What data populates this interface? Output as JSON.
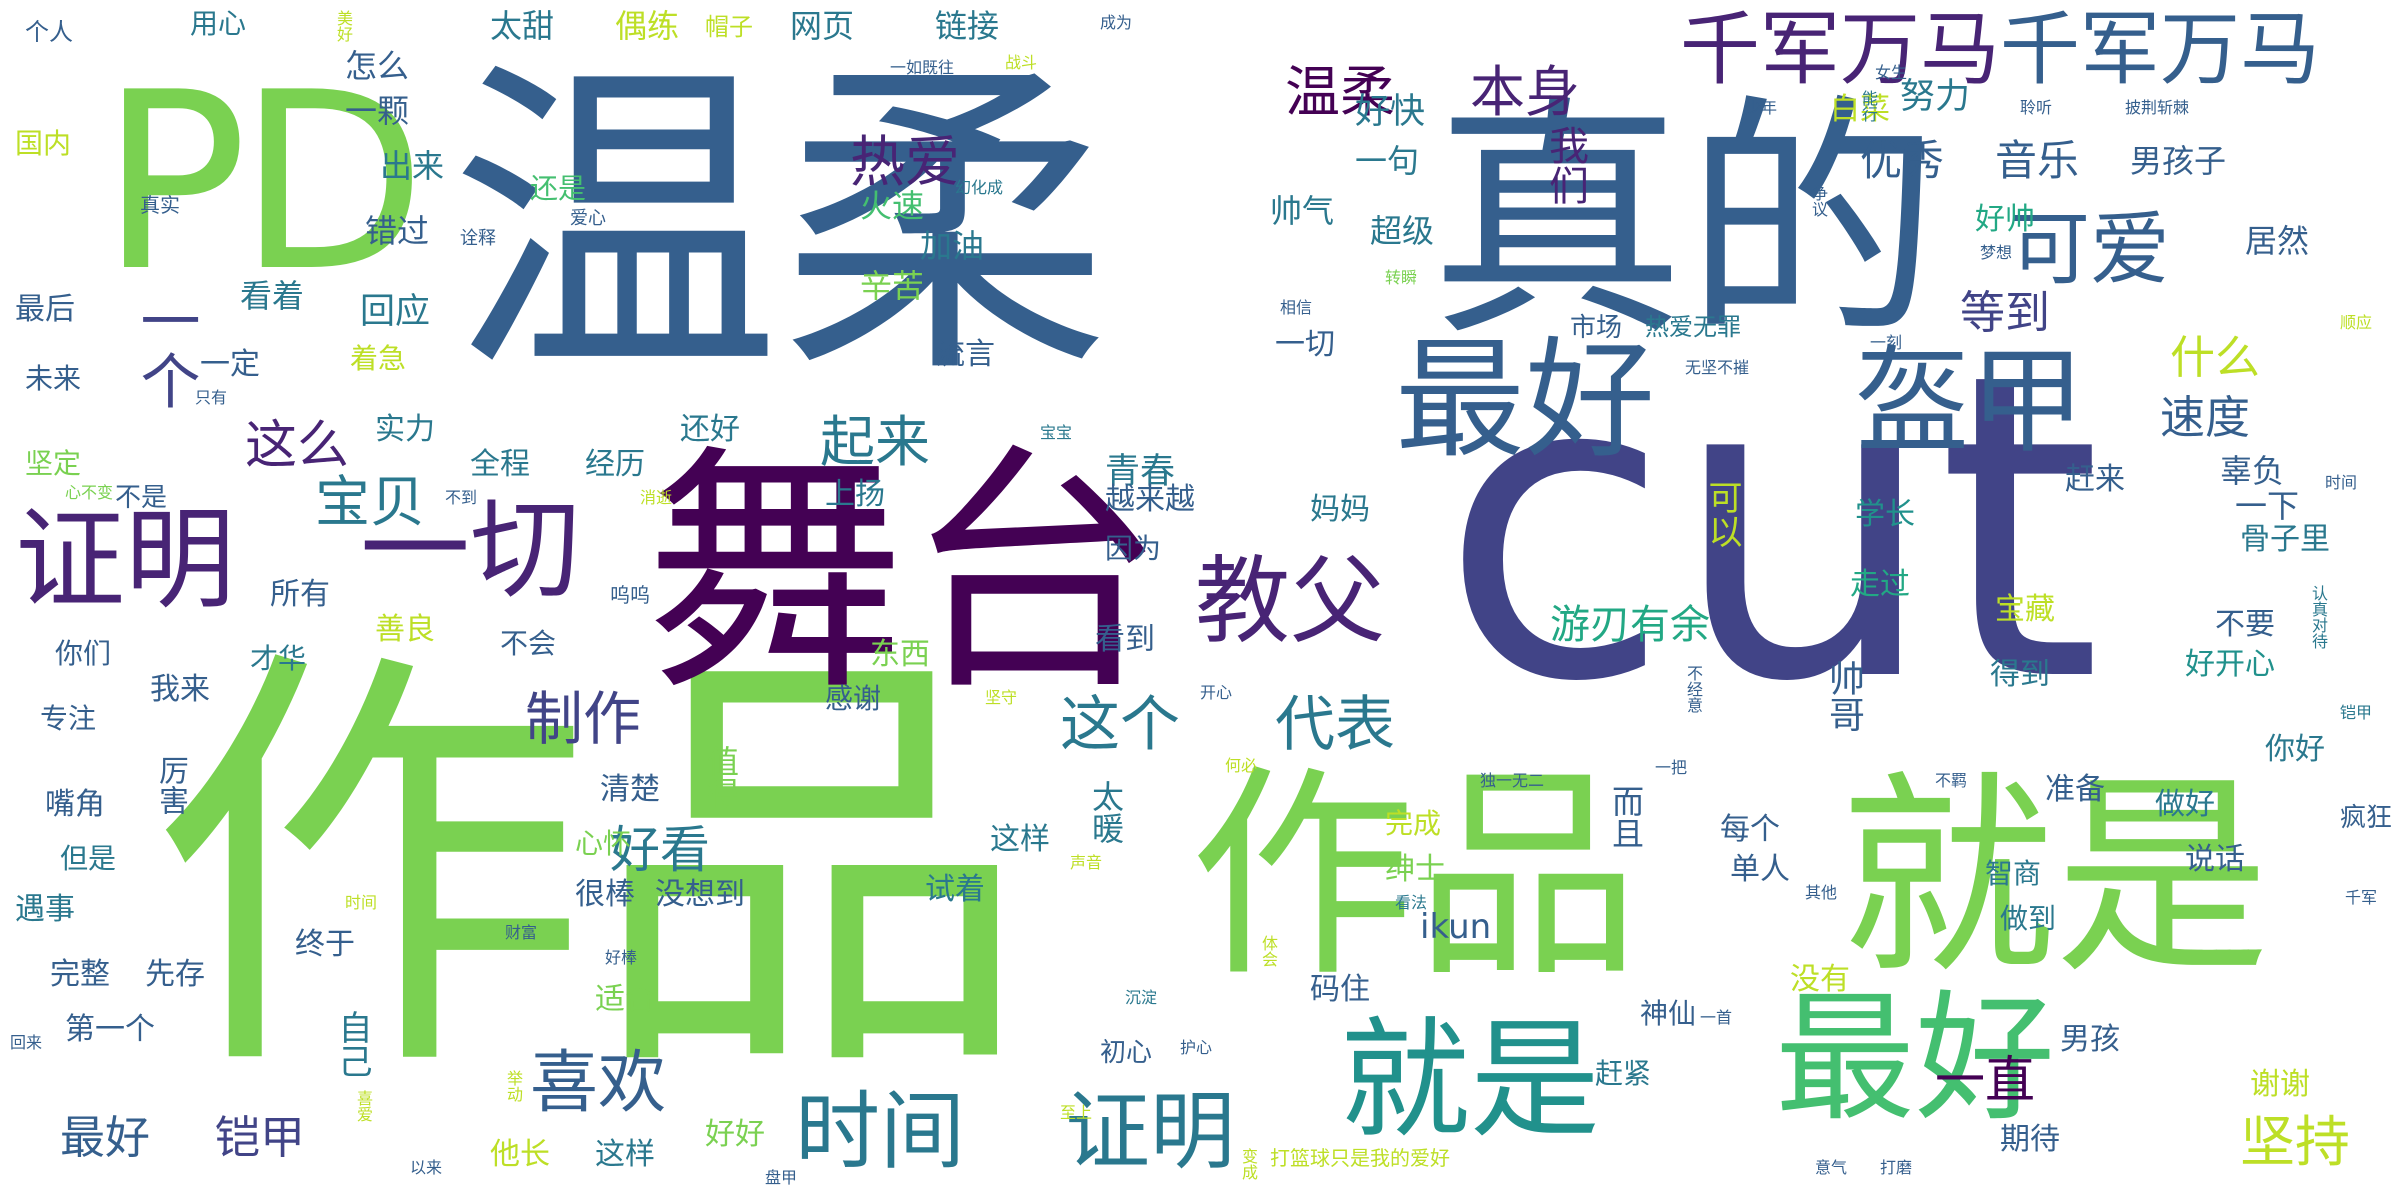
{
  "colors": {
    "c0": "#440154",
    "c1": "#482475",
    "c2": "#414487",
    "c3": "#355f8d",
    "c4": "#2a788e",
    "c5": "#21918c",
    "c6": "#22a884",
    "c7": "#44bf70",
    "c8": "#7ad151",
    "c9": "#bddf26",
    "c10": "#fde725"
  },
  "words": [
    {
      "text": "作品",
      "color": "c8"
    },
    {
      "text": "cut",
      "color": "c2"
    },
    {
      "text": "温柔",
      "color": "c3"
    },
    {
      "text": "真的",
      "color": "c3"
    },
    {
      "text": "舞台",
      "color": "c0"
    },
    {
      "text": "作品",
      "color": "c8"
    },
    {
      "text": "就是",
      "color": "c8"
    },
    {
      "text": "PD",
      "color": "c8"
    },
    {
      "text": "最好",
      "color": "c7"
    },
    {
      "text": "就是",
      "color": "c5"
    },
    {
      "text": "最好",
      "color": "c3"
    },
    {
      "text": "盔甲",
      "color": "c3"
    },
    {
      "text": "证明",
      "color": "c1"
    },
    {
      "text": "一切",
      "color": "c1"
    },
    {
      "text": "教父",
      "color": "c1"
    },
    {
      "text": "千军万马",
      "color": "c1"
    },
    {
      "text": "千军万马",
      "color": "c3"
    },
    {
      "text": "可爱",
      "color": "c3"
    },
    {
      "text": "时间",
      "color": "c4"
    },
    {
      "text": "证明",
      "color": "c4"
    },
    {
      "text": "喜欢",
      "color": "c3"
    },
    {
      "text": "坚持",
      "color": "c9"
    },
    {
      "text": "温柔",
      "color": "c0"
    },
    {
      "text": "本身",
      "color": "c1"
    },
    {
      "text": "热爱",
      "color": "c1"
    },
    {
      "text": "优秀",
      "color": "c3"
    },
    {
      "text": "音乐",
      "color": "c3"
    },
    {
      "text": "等到",
      "color": "c2"
    },
    {
      "text": "什么",
      "color": "c9"
    },
    {
      "text": "速度",
      "color": "c3"
    },
    {
      "text": "这个",
      "color": "c4"
    },
    {
      "text": "代表",
      "color": "c4"
    },
    {
      "text": "制作",
      "color": "c2"
    },
    {
      "text": "宝贝",
      "color": "c4"
    },
    {
      "text": "起来",
      "color": "c4"
    },
    {
      "text": "这么",
      "color": "c1"
    },
    {
      "text": "一个",
      "color": "c2"
    },
    {
      "text": "好看",
      "color": "c4"
    },
    {
      "text": "最好",
      "color": "c3"
    },
    {
      "text": "铠甲",
      "color": "c2"
    },
    {
      "text": "一直",
      "color": "c0"
    },
    {
      "text": "游刃有余",
      "color": "c6"
    },
    {
      "text": "网页",
      "color": "c4"
    },
    {
      "text": "链接",
      "color": "c4"
    },
    {
      "text": "偶练",
      "color": "c9"
    },
    {
      "text": "太甜",
      "color": "c4"
    },
    {
      "text": "用心",
      "color": "c4"
    },
    {
      "text": "个人",
      "color": "c3"
    },
    {
      "text": "帽子",
      "color": "c9"
    },
    {
      "text": "怎么",
      "color": "c3"
    },
    {
      "text": "一颗",
      "color": "c3"
    },
    {
      "text": "出来",
      "color": "c4"
    },
    {
      "text": "错过",
      "color": "c3"
    },
    {
      "text": "还是",
      "color": "c7"
    },
    {
      "text": "好快",
      "color": "c4"
    },
    {
      "text": "一句",
      "color": "c4"
    },
    {
      "text": "帅气",
      "color": "c4"
    },
    {
      "text": "超级",
      "color": "c4"
    },
    {
      "text": "我们",
      "color": "c1"
    },
    {
      "text": "努力",
      "color": "c4"
    },
    {
      "text": "白菜",
      "color": "c9"
    },
    {
      "text": "男孩子",
      "color": "c3"
    },
    {
      "text": "好帅",
      "color": "c6"
    },
    {
      "text": "居然",
      "color": "c3"
    },
    {
      "text": "国内",
      "color": "c9"
    },
    {
      "text": "真实",
      "color": "c3"
    },
    {
      "text": "诠释",
      "color": "c3"
    },
    {
      "text": "爱心",
      "color": "c3"
    },
    {
      "text": "火速",
      "color": "c7"
    },
    {
      "text": "加油",
      "color": "c4"
    },
    {
      "text": "辛苦",
      "color": "c8"
    },
    {
      "text": "回应",
      "color": "c4"
    },
    {
      "text": "看着",
      "color": "c4"
    },
    {
      "text": "最后",
      "color": "c3"
    },
    {
      "text": "一定",
      "color": "c3"
    },
    {
      "text": "着急",
      "color": "c9"
    },
    {
      "text": "未来",
      "color": "c3"
    },
    {
      "text": "流言",
      "color": "c3"
    },
    {
      "text": "一切",
      "color": "c3"
    },
    {
      "text": "市场",
      "color": "c3"
    },
    {
      "text": "热爱无罪",
      "color": "c4"
    },
    {
      "text": "实力",
      "color": "c4"
    },
    {
      "text": "全程",
      "color": "c4"
    },
    {
      "text": "经历",
      "color": "c4"
    },
    {
      "text": "还好",
      "color": "c4"
    },
    {
      "text": "上扬",
      "color": "c4"
    },
    {
      "text": "青春",
      "color": "c4"
    },
    {
      "text": "越来越",
      "color": "c3"
    },
    {
      "text": "坚定",
      "color": "c8"
    },
    {
      "text": "不是",
      "color": "c3"
    },
    {
      "text": "妈妈",
      "color": "c4"
    },
    {
      "text": "辜负",
      "color": "c3"
    },
    {
      "text": "一下",
      "color": "c3"
    },
    {
      "text": "赶来",
      "color": "c3"
    },
    {
      "text": "学长",
      "color": "c5"
    },
    {
      "text": "骨子里",
      "color": "c4"
    },
    {
      "text": "可以",
      "color": "c9"
    },
    {
      "text": "所有",
      "color": "c3"
    },
    {
      "text": "因为",
      "color": "c3"
    },
    {
      "text": "走过",
      "color": "c6"
    },
    {
      "text": "善良",
      "color": "c9"
    },
    {
      "text": "不会",
      "color": "c3"
    },
    {
      "text": "宝藏",
      "color": "c9"
    },
    {
      "text": "不要",
      "color": "c3"
    },
    {
      "text": "你们",
      "color": "c3"
    },
    {
      "text": "才华",
      "color": "c4"
    },
    {
      "text": "看到",
      "color": "c3"
    },
    {
      "text": "得到",
      "color": "c4"
    },
    {
      "text": "好开心",
      "color": "c5"
    },
    {
      "text": "我来",
      "color": "c3"
    },
    {
      "text": "东西",
      "color": "c8"
    },
    {
      "text": "帅哥",
      "color": "c3"
    },
    {
      "text": "感谢",
      "color": "c3"
    },
    {
      "text": "专注",
      "color": "c3"
    },
    {
      "text": "厉害",
      "color": "c3"
    },
    {
      "text": "值得",
      "color": "c8"
    },
    {
      "text": "清楚",
      "color": "c3"
    },
    {
      "text": "太暖",
      "color": "c4"
    },
    {
      "text": "这样",
      "color": "c4"
    },
    {
      "text": "你好",
      "color": "c4"
    },
    {
      "text": "准备",
      "color": "c3"
    },
    {
      "text": "做好",
      "color": "c4"
    },
    {
      "text": "而且",
      "color": "c3"
    },
    {
      "text": "每个",
      "color": "c3"
    },
    {
      "text": "嘴角",
      "color": "c3"
    },
    {
      "text": "心怀",
      "color": "c8"
    },
    {
      "text": "完成",
      "color": "c9"
    },
    {
      "text": "说话",
      "color": "c3"
    },
    {
      "text": "疯狂",
      "color": "c3"
    },
    {
      "text": "但是",
      "color": "c4"
    },
    {
      "text": "单人",
      "color": "c3"
    },
    {
      "text": "绅士",
      "color": "c8"
    },
    {
      "text": "智商",
      "color": "c4"
    },
    {
      "text": "很棒",
      "color": "c3"
    },
    {
      "text": "没想到",
      "color": "c3"
    },
    {
      "text": "试着",
      "color": "c4"
    },
    {
      "text": "遇事",
      "color": "c4"
    },
    {
      "text": "ikun",
      "color": "c3"
    },
    {
      "text": "做到",
      "color": "c4"
    },
    {
      "text": "完整",
      "color": "c3"
    },
    {
      "text": "先存",
      "color": "c3"
    },
    {
      "text": "终于",
      "color": "c3"
    },
    {
      "text": "没有",
      "color": "c9"
    },
    {
      "text": "第一个",
      "color": "c3"
    },
    {
      "text": "适合",
      "color": "c8"
    },
    {
      "text": "码住",
      "color": "c3"
    },
    {
      "text": "神仙",
      "color": "c3"
    },
    {
      "text": "男孩",
      "color": "c3"
    },
    {
      "text": "自己",
      "color": "c4"
    },
    {
      "text": "赶紧",
      "color": "c4"
    },
    {
      "text": "谢谢",
      "color": "c9"
    },
    {
      "text": "初心",
      "color": "c3"
    },
    {
      "text": "他长",
      "color": "c9"
    },
    {
      "text": "这样",
      "color": "c4"
    },
    {
      "text": "好好",
      "color": "c8"
    },
    {
      "text": "期待",
      "color": "c3"
    },
    {
      "text": "成为",
      "color": "c3"
    },
    {
      "text": "美好",
      "color": "c9"
    },
    {
      "text": "一如既往",
      "color": "c3"
    },
    {
      "text": "战斗",
      "color": "c9"
    },
    {
      "text": "女生",
      "color": "c3"
    },
    {
      "text": "聆听",
      "color": "c3"
    },
    {
      "text": "披荆斩棘",
      "color": "c3"
    },
    {
      "text": "少年",
      "color": "c3"
    },
    {
      "text": "能行",
      "color": "c4"
    },
    {
      "text": "幻化成",
      "color": "c4"
    },
    {
      "text": "争议",
      "color": "c3"
    },
    {
      "text": "梦想",
      "color": "c3"
    },
    {
      "text": "相信",
      "color": "c3"
    },
    {
      "text": "转瞬",
      "color": "c8"
    },
    {
      "text": "顺应",
      "color": "c9"
    },
    {
      "text": "无坚不摧",
      "color": "c3"
    },
    {
      "text": "一刻",
      "color": "c3"
    },
    {
      "text": "只有",
      "color": "c3"
    },
    {
      "text": "宝宝",
      "color": "c4"
    },
    {
      "text": "心不变",
      "color": "c8"
    },
    {
      "text": "不到",
      "color": "c3"
    },
    {
      "text": "消逝",
      "color": "c9"
    },
    {
      "text": "时间",
      "color": "c3"
    },
    {
      "text": "认真对待",
      "color": "c4"
    },
    {
      "text": "呜呜",
      "color": "c3"
    },
    {
      "text": "开心",
      "color": "c3"
    },
    {
      "text": "坚守",
      "color": "c9"
    },
    {
      "text": "不经意",
      "color": "c3"
    },
    {
      "text": "铠甲",
      "color": "c4"
    },
    {
      "text": "独一无二",
      "color": "c3"
    },
    {
      "text": "何必",
      "color": "c9"
    },
    {
      "text": "一把",
      "color": "c3"
    },
    {
      "text": "不羁",
      "color": "c3"
    },
    {
      "text": "声音",
      "color": "c9"
    },
    {
      "text": "时间",
      "color": "c9"
    },
    {
      "text": "看法",
      "color": "c4"
    },
    {
      "text": "其他",
      "color": "c3"
    },
    {
      "text": "千军",
      "color": "c3"
    },
    {
      "text": "财富",
      "color": "c3"
    },
    {
      "text": "体会",
      "color": "c9"
    },
    {
      "text": "好棒",
      "color": "c3"
    },
    {
      "text": "沉淀",
      "color": "c4"
    },
    {
      "text": "回来",
      "color": "c3"
    },
    {
      "text": "一首",
      "color": "c3"
    },
    {
      "text": "护心",
      "color": "c3"
    },
    {
      "text": "举动",
      "color": "c9"
    },
    {
      "text": "喜爱",
      "color": "c9"
    },
    {
      "text": "至上",
      "color": "c9"
    },
    {
      "text": "打篮球只是我的爱好",
      "color": "c9"
    },
    {
      "text": "以来",
      "color": "c3"
    },
    {
      "text": "盘甲",
      "color": "c3"
    },
    {
      "text": "变成",
      "color": "c9"
    },
    {
      "text": "意气",
      "color": "c3"
    },
    {
      "text": "打磨",
      "color": "c3"
    }
  ]
}
